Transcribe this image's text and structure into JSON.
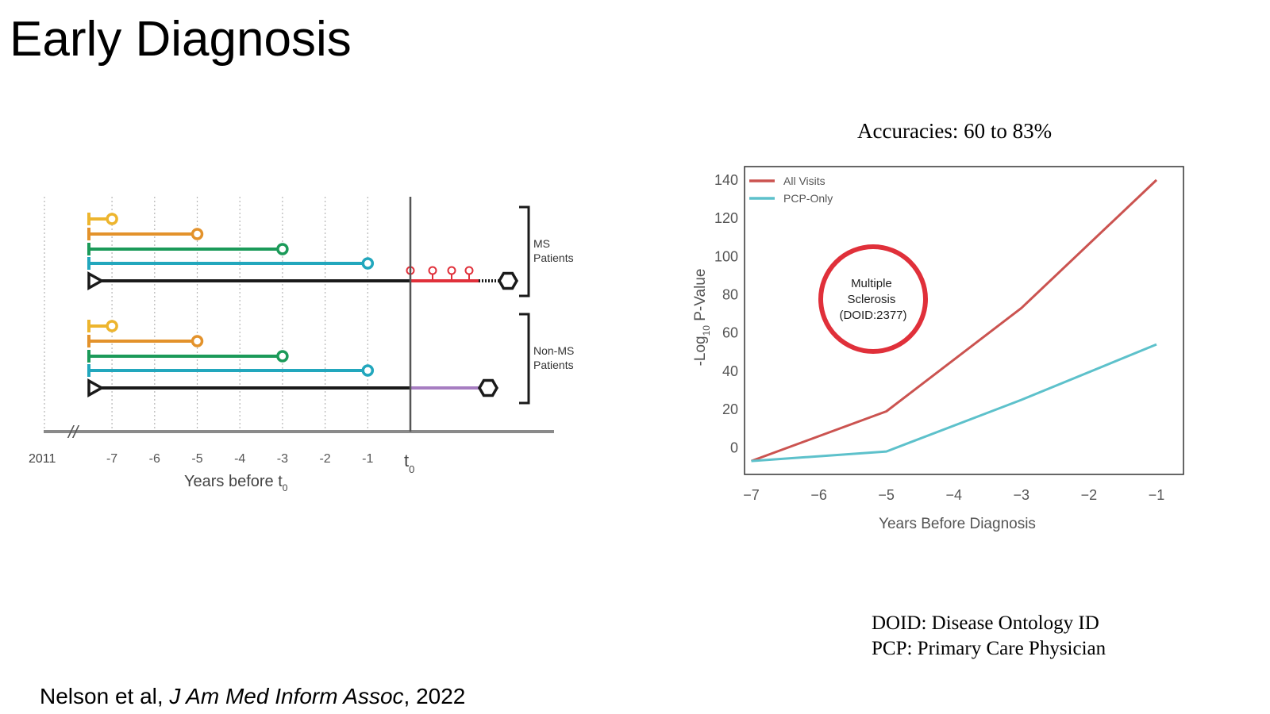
{
  "slide": {
    "title": "Early Diagnosis",
    "accuracy_text": "Accuracies: 60 to 83%",
    "abbreviations": [
      "DOID: Disease Ontology ID",
      "PCP: Primary Care Physician"
    ],
    "citation": {
      "authors": "Nelson et al, ",
      "journal": "J Am Med Inform Assoc",
      "year": ", 2022"
    }
  },
  "timeline": {
    "start_label": "2011",
    "ticks": [
      "-7",
      "-6",
      "-5",
      "-4",
      "-3",
      "-2",
      "-1"
    ],
    "t0_label": "t",
    "t0_sub": "0",
    "xlabel": "Years before t",
    "xlabel_sub": "0",
    "groups": [
      {
        "label_line1": "MS",
        "label_line2": "Patients"
      },
      {
        "label_line1": "Non-MS",
        "label_line2": "Patients"
      }
    ],
    "colors": {
      "yellow": "#EDB52E",
      "orange": "#E3922B",
      "green": "#1B9A59",
      "teal": "#22A7BD",
      "black": "#1a1a1a",
      "red": "#E0303A",
      "purple": "#A67DC1"
    }
  },
  "chart_data": {
    "type": "line",
    "title": "",
    "xlabel": "Years Before Diagnosis",
    "ylabel": "-Log10 P-Value",
    "x": [
      -7,
      -5,
      -3,
      -1
    ],
    "xticks": [
      "−7",
      "−6",
      "−5",
      "−4",
      "−3",
      "−2",
      "−1"
    ],
    "yticks": [
      "0",
      "20",
      "40",
      "60",
      "80",
      "100",
      "120",
      "140"
    ],
    "xlim": [
      -7.1,
      -0.6
    ],
    "ylim": [
      -14,
      147
    ],
    "legend_position": "top-left",
    "series": [
      {
        "name": "All Visits",
        "color": "#CB5350",
        "values": [
          -7,
          19,
          73,
          140
        ]
      },
      {
        "name": "PCP-Only",
        "color": "#5DC1CB",
        "values": [
          -7,
          -2,
          25,
          54
        ]
      }
    ],
    "annotation": {
      "line1": "Multiple",
      "line2": "Sclerosis",
      "line3": "(DOID:2377)",
      "color": "#E0303A"
    }
  }
}
